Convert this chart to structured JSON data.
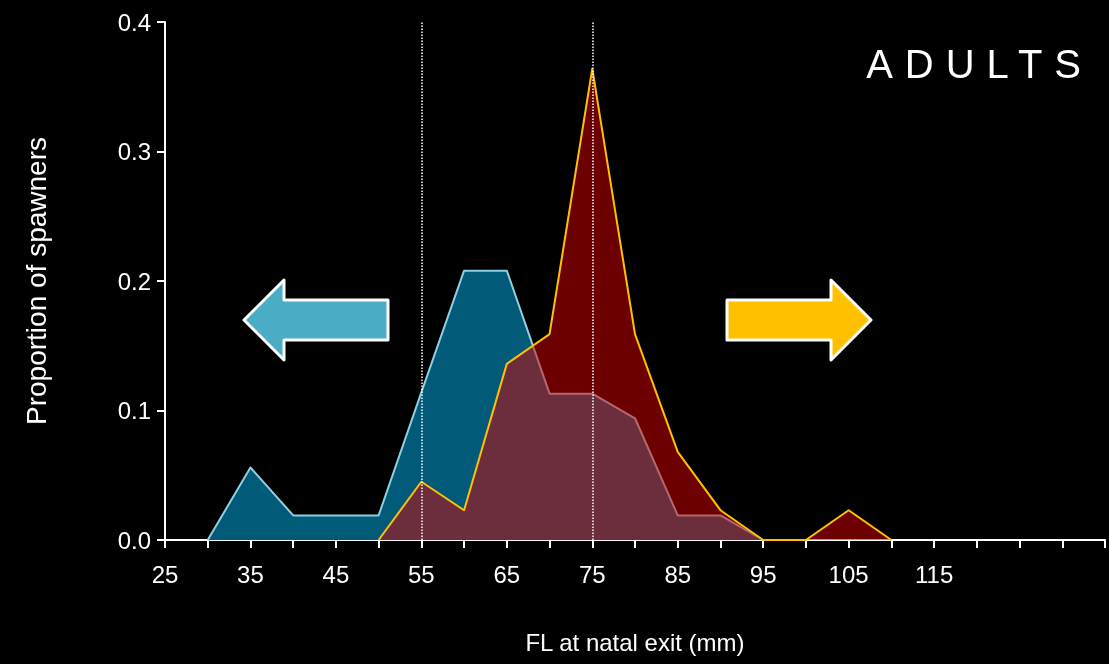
{
  "chart_data": {
    "type": "area",
    "xlabel": "FL at natal exit (mm)",
    "ylabel": "Proportion of spawners",
    "annotations": [
      "ADULTS"
    ],
    "xlim": [
      25,
      135
    ],
    "xticks": [
      25,
      {
        "value": 30,
        "label": null
      },
      35,
      {
        "value": 40,
        "label": null
      },
      45,
      {
        "value": 50,
        "label": null
      },
      55,
      {
        "value": 60,
        "label": null
      },
      65,
      {
        "value": 70,
        "label": null
      },
      75,
      {
        "value": 80,
        "label": null
      },
      85,
      {
        "value": 90,
        "label": null
      },
      95,
      {
        "value": 100,
        "label": null
      },
      105,
      {
        "value": 110,
        "label": null
      },
      115,
      {
        "value": 120,
        "label": null
      },
      {
        "value": 125,
        "label": null
      },
      {
        "value": 130,
        "label": null
      },
      {
        "value": 135,
        "label": null
      }
    ],
    "ylim": [
      0,
      0.4
    ],
    "yticks": [
      {
        "value": 0,
        "label": "0.0"
      },
      0.1,
      0.2,
      0.3,
      0.4
    ],
    "series": [
      {
        "color": "#005a78",
        "x": [
          30,
          35,
          40,
          45,
          50,
          55,
          60,
          65,
          70,
          75,
          80,
          85,
          90,
          95
        ],
        "values": [
          0,
          0.056,
          0.019,
          0.019,
          0.019,
          0.114,
          0.208,
          0.208,
          0.113,
          0.113,
          0.094,
          0.019,
          0.019,
          0
        ]
      },
      {
        "color": "#d80000",
        "x": [
          50,
          55,
          60,
          65,
          70,
          75,
          80,
          85,
          90,
          95,
          100,
          105,
          110
        ],
        "values": [
          0,
          0.045,
          0.023,
          0.136,
          0.159,
          0.364,
          0.159,
          0.068,
          0.023,
          0,
          0,
          0.023,
          0
        ]
      }
    ],
    "ref_lines": [
      {
        "axis": "x",
        "value": 55,
        "color": "#ffffff",
        "line_style": "dotted"
      },
      {
        "axis": "x",
        "value": 75,
        "color": "#ffffff",
        "line_style": "dotted"
      }
    ],
    "marker": "none"
  }
}
